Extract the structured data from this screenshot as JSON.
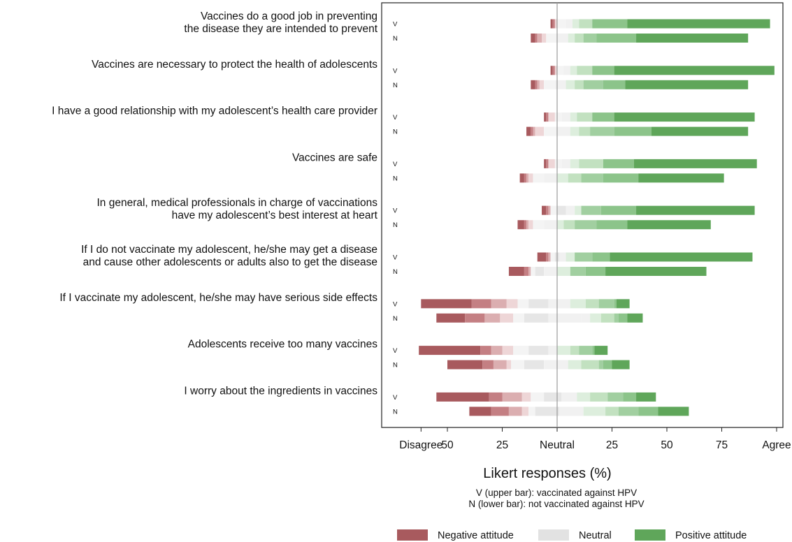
{
  "chart_data": {
    "type": "bar",
    "subtype": "diverging-stacked-likert",
    "xlabel": "Likert responses (%)",
    "x_tick_labels": [
      "Disagree",
      "50",
      "25",
      "Neutral",
      "25",
      "50",
      "75",
      "Agree"
    ],
    "x_ticks": [
      -62,
      -50,
      -25,
      0,
      25,
      50,
      75,
      100
    ],
    "xlim": [
      -80,
      106
    ],
    "bar_codes": [
      "V",
      "N"
    ],
    "notes": [
      "V (upper bar): vaccinated against HPV",
      "N (lower bar): not vaccinated against HPV"
    ],
    "legend": [
      {
        "label": "Negative attitude",
        "color": "#a85a5e"
      },
      {
        "label": "Neutral",
        "color": "#e2e2e2"
      },
      {
        "label": "Positive attitude",
        "color": "#5fa65a"
      }
    ],
    "legend_position": "bottom",
    "scale_colors": [
      "#a85a5e",
      "#c47f83",
      "#dbaeb0",
      "#eed6d7",
      "#f4f4f4",
      "#e6e6e6",
      "#f1f1f1",
      "#ddeedd",
      "#c2e1c0",
      "#a1cfa0",
      "#8cc48a",
      "#5fa65a"
    ],
    "orientation_note": "segments listed left to right in percent; first segment starts at 'start'",
    "items": [
      {
        "label": [
          "Vaccines do a good job in preventing",
          "the disease they are intended to prevent"
        ],
        "bars": [
          {
            "code": "V",
            "start": -3,
            "segments": [
              1,
              1,
              1,
              4,
              3,
              3,
              6,
              16,
              65
            ]
          },
          {
            "code": "N",
            "start": -12,
            "segments": [
              2,
              1,
              2,
              2,
              5,
              5,
              3,
              4,
              6,
              18,
              51
            ]
          }
        ]
      },
      {
        "label": [
          "Vaccines are necessary to protect the health of adolescents"
        ],
        "bars": [
          {
            "code": "V",
            "start": -3,
            "segments": [
              1,
              1,
              1,
              3,
              3,
              3,
              7,
              10,
              73
            ]
          },
          {
            "code": "N",
            "start": -12,
            "segments": [
              2,
              1,
              1,
              2,
              5,
              5,
              4,
              4,
              9,
              10,
              56
            ]
          }
        ]
      },
      {
        "label": [
          "I have a good relationship with my adolescent’s health care provider"
        ],
        "bars": [
          {
            "code": "V",
            "start": -6,
            "segments": [
              1,
              1,
              3,
              3,
              4,
              3,
              7,
              10,
              64
            ]
          },
          {
            "code": "N",
            "start": -14,
            "segments": [
              2,
              1,
              1,
              4,
              6,
              6,
              4,
              5,
              11,
              17,
              44
            ]
          }
        ]
      },
      {
        "label": [
          "Vaccines are safe"
        ],
        "bars": [
          {
            "code": "V",
            "start": -6,
            "segments": [
              1,
              1,
              3,
              3,
              4,
              4,
              11,
              14,
              56
            ]
          },
          {
            "code": "N",
            "start": -17,
            "segments": [
              2,
              1,
              1,
              2,
              5,
              6,
              5,
              6,
              10,
              16,
              39
            ]
          }
        ]
      },
      {
        "label": [
          "In general, medical professionals in charge of vaccinations",
          "have my adolescent’s best interest at heart"
        ],
        "bars": [
          {
            "code": "V",
            "start": -7,
            "segments": [
              2,
              1,
              1,
              3,
              4,
              4,
              3,
              9,
              16,
              54
            ]
          },
          {
            "code": "N",
            "start": -18,
            "segments": [
              3,
              1,
              1,
              2,
              5,
              6,
              3,
              5,
              10,
              14,
              38
            ]
          }
        ]
      },
      {
        "label": [
          "If I do not vaccinate my adolescent, he/she may get a disease",
          "and cause other adolescents or adults also to get the disease"
        ],
        "bars": [
          {
            "code": "V",
            "start": -9,
            "segments": [
              4,
              1,
              1,
              2,
              2,
              3,
              4,
              8,
              8,
              65
            ]
          },
          {
            "code": "N",
            "start": -22,
            "segments": [
              7,
              2,
              1,
              2,
              4,
              6,
              6,
              7,
              9,
              46
            ]
          }
        ]
      },
      {
        "label": [
          "If I vaccinate my adolescent, he/she may have serious side effects"
        ],
        "bars": [
          {
            "code": "V",
            "start": -62,
            "segments": [
              23,
              9,
              7,
              5,
              5,
              9,
              10,
              7,
              6,
              7,
              1,
              6
            ]
          },
          {
            "code": "N",
            "start": -55,
            "segments": [
              13,
              9,
              7,
              6,
              5,
              11,
              15,
              4,
              5,
              6,
              2,
              4,
              7
            ]
          }
        ]
      },
      {
        "label": [
          "Adolescents receive too many vaccines"
        ],
        "bars": [
          {
            "code": "V",
            "start": -63,
            "segments": [
              28,
              5,
              5,
              5,
              7,
              9,
              4,
              6,
              4,
              6,
              1,
              6
            ]
          },
          {
            "code": "N",
            "start": -50,
            "segments": [
              16,
              5,
              6,
              2,
              6,
              9,
              6,
              5,
              6,
              8,
              2,
              4,
              8
            ]
          }
        ]
      },
      {
        "label": [
          "I worry about the ingredients in vaccines"
        ],
        "bars": [
          {
            "code": "V",
            "start": -55,
            "segments": [
              24,
              6,
              9,
              4,
              6,
              8,
              7,
              6,
              8,
              7,
              6,
              9
            ]
          },
          {
            "code": "N",
            "start": -40,
            "segments": [
              10,
              8,
              6,
              3,
              3,
              11,
              11,
              10,
              6,
              9,
              9,
              14
            ]
          }
        ]
      }
    ]
  }
}
